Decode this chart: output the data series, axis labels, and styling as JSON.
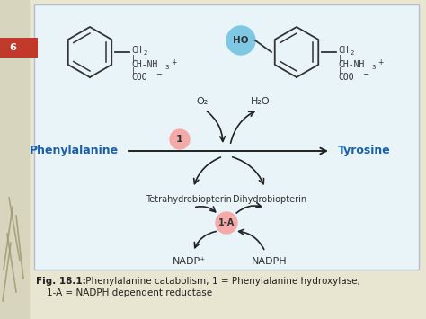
{
  "bg_slide": "#e8e5d0",
  "bg_left": "#d8d5be",
  "bg_panel": "#e8f4f8",
  "panel_border": "#b0c0cc",
  "slide_number": "6",
  "slide_number_bg": "#c0392b",
  "slide_number_color": "#ffffff",
  "phe_label": "Phenylalanine",
  "tyr_label": "Tyrosine",
  "enzyme1_label": "1",
  "enzyme2_label": "1-A",
  "tetra_label": "Tetrahydrobiopterin",
  "dihydro_label": "Dihydrobiopterin",
  "nadp_label": "NADP⁺",
  "nadph_label": "NADPH",
  "o2_label": "O₂",
  "h2o_label": "H₂O",
  "arrow_color": "#222222",
  "phe_color": "#1a5fa8",
  "tyr_color": "#1a5fa8",
  "enzyme1_circle_color": "#f5aaaa",
  "enzyme2_circle_color": "#f5aaaa",
  "ho_circle_color": "#7ec8e3",
  "fig_label_bold": "Fig. 18.1:",
  "caption_text": " Phenylalanine catabolism; 1 = Phenylalanine hydroxylase;",
  "caption_line2": "1-A = NADPH dependent reductase"
}
